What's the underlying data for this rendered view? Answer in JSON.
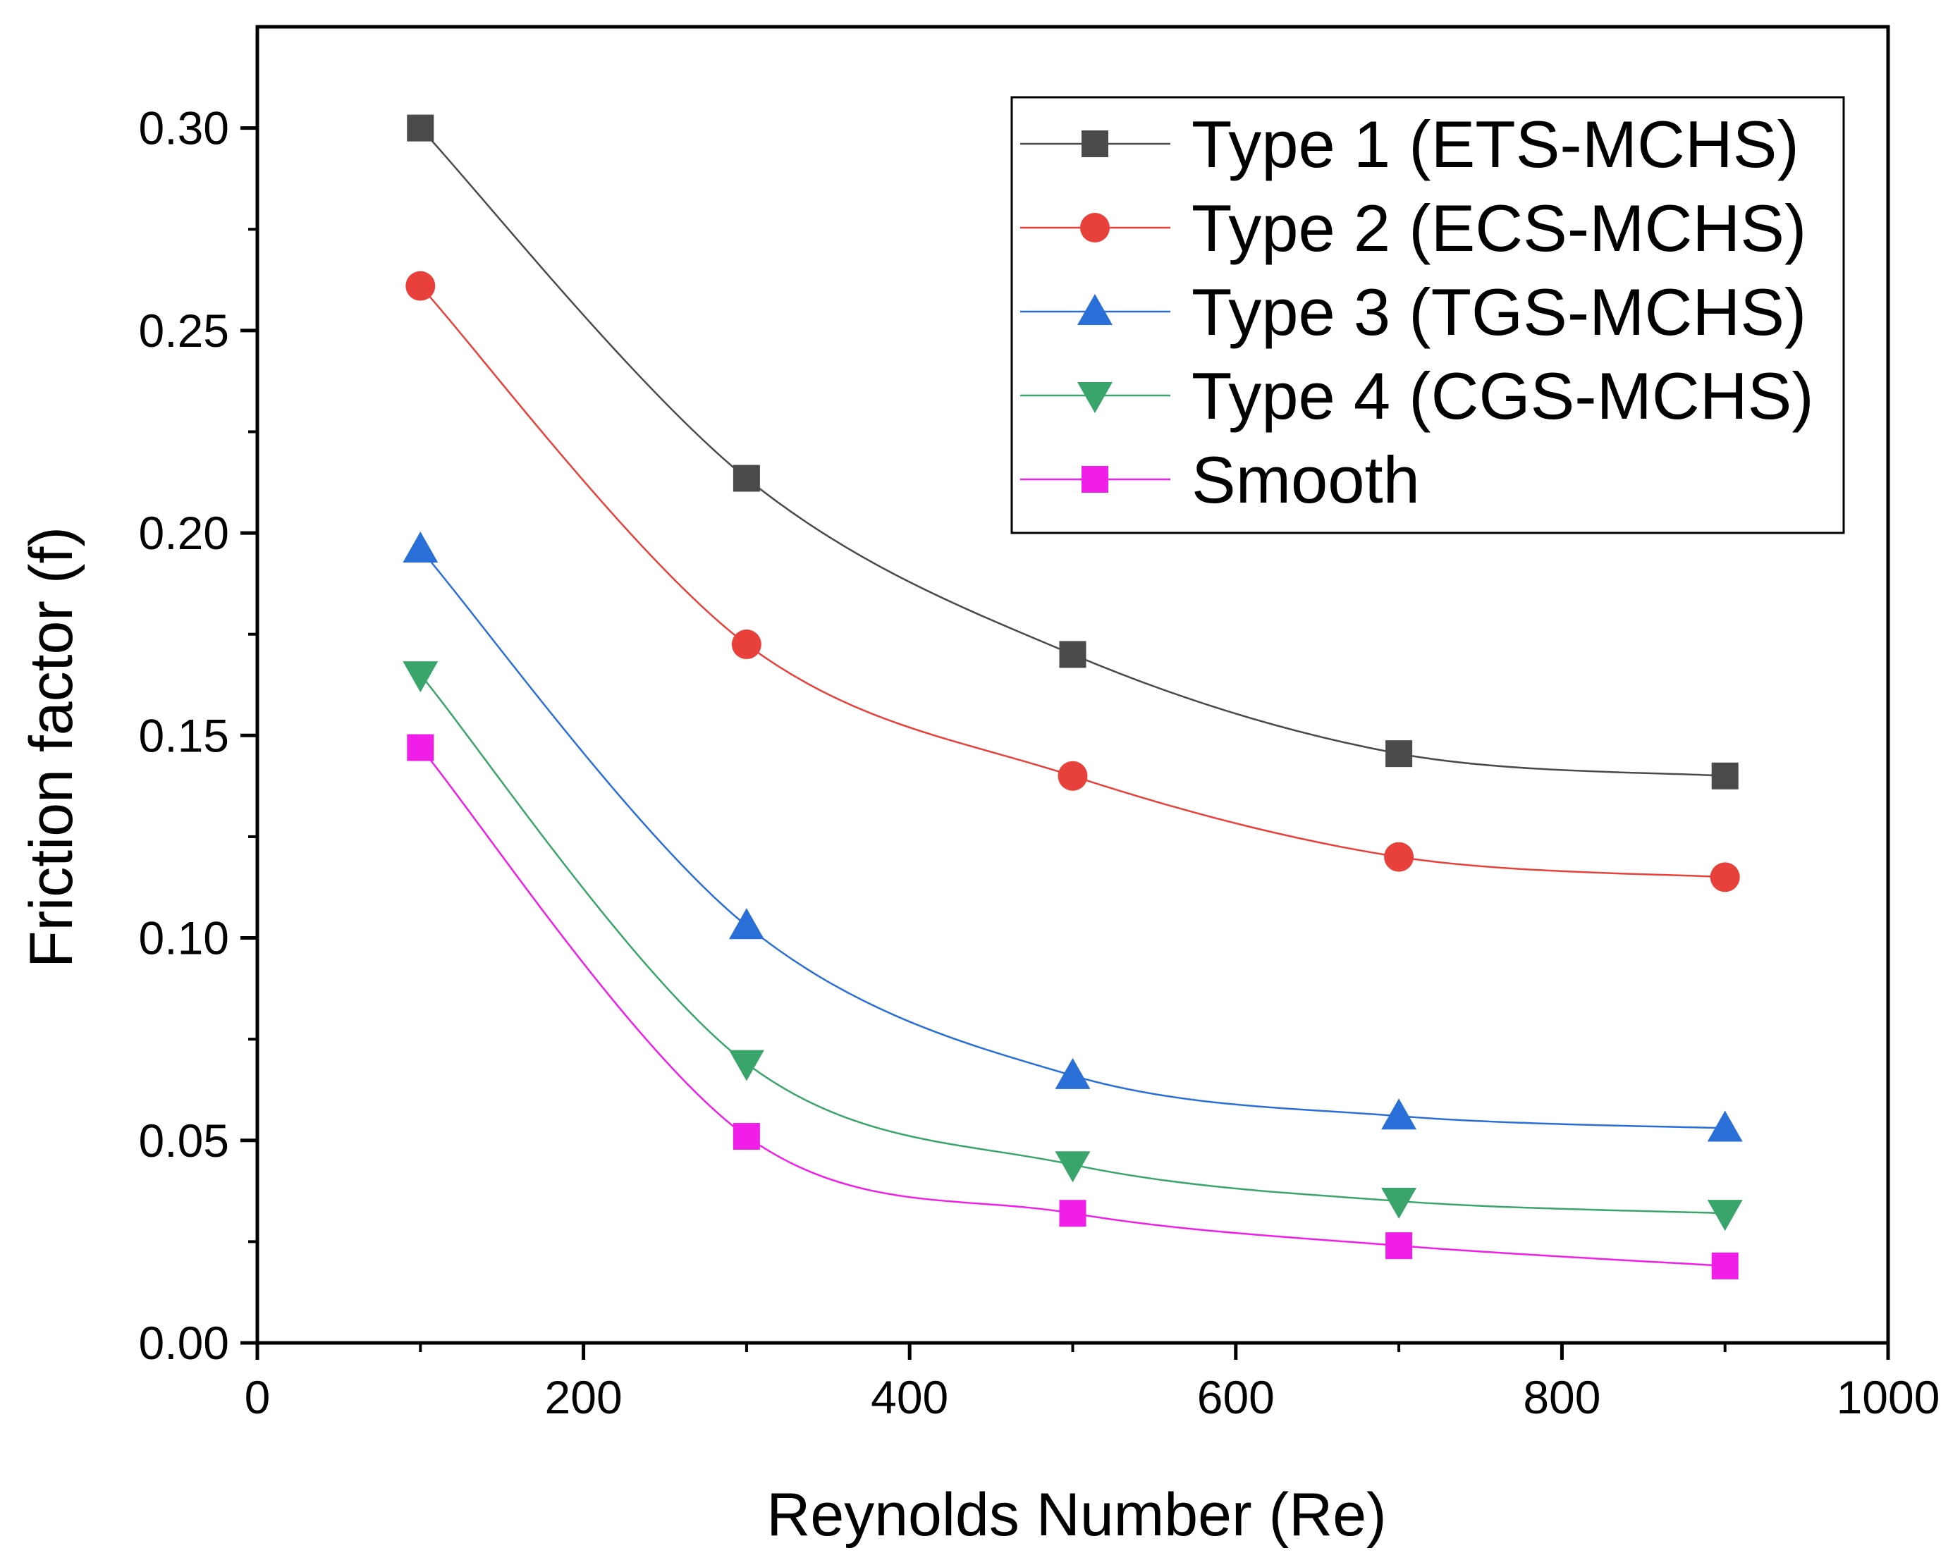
{
  "chart_data": {
    "type": "line",
    "title": "",
    "xlabel": "Reynolds Number (Re)",
    "ylabel": "Friction factor (f)",
    "xlim": [
      0,
      1000
    ],
    "ylim": [
      0,
      0.325
    ],
    "xticks": [
      0,
      200,
      400,
      600,
      800,
      1000
    ],
    "xtick_labels": [
      "0",
      "200",
      "400",
      "600",
      "800",
      "1000"
    ],
    "yticks": [
      0.0,
      0.05,
      0.1,
      0.15,
      0.2,
      0.25,
      0.3
    ],
    "ytick_labels": [
      "0.00",
      "0.05",
      "0.10",
      "0.15",
      "0.20",
      "0.25",
      "0.30"
    ],
    "grid": false,
    "legend_position": "top-right",
    "x": [
      100,
      300,
      500,
      700,
      900
    ],
    "series": [
      {
        "name": "Type 1 (ETS-MCHS)",
        "values": [
          0.3,
          0.2135,
          0.17,
          0.1455,
          0.14
        ],
        "color": "#4a4a4a",
        "marker": "square"
      },
      {
        "name": "Type 2 (ECS-MCHS)",
        "values": [
          0.261,
          0.1725,
          0.14,
          0.12,
          0.115
        ],
        "color": "#e8403a",
        "marker": "circle"
      },
      {
        "name": "Type 3 (TGS-MCHS)",
        "values": [
          0.196,
          0.103,
          0.066,
          0.056,
          0.053
        ],
        "color": "#2a6ed8",
        "marker": "triangle-up"
      },
      {
        "name": "Type 4 (CGS-MCHS)",
        "values": [
          0.165,
          0.069,
          0.044,
          0.035,
          0.032
        ],
        "color": "#3aa56a",
        "marker": "triangle-down"
      },
      {
        "name": "Smooth",
        "values": [
          0.147,
          0.051,
          0.032,
          0.024,
          0.019
        ],
        "color": "#f01ee8",
        "marker": "square"
      }
    ]
  }
}
